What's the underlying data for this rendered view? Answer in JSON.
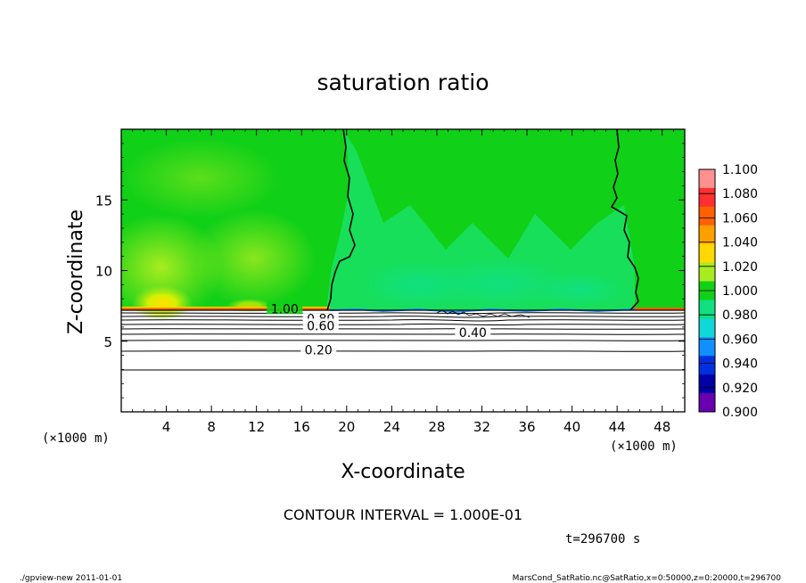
{
  "chart_data": {
    "type": "heatmap",
    "title": "saturation ratio",
    "xlabel": "X-coordinate",
    "ylabel": "Z-coordinate",
    "x_unit_label": "(×1000 m)",
    "z_unit_label": "(×1000 m)",
    "x_ticks": [
      4,
      8,
      12,
      16,
      20,
      24,
      28,
      32,
      36,
      40,
      44,
      48
    ],
    "z_ticks": [
      5,
      10,
      15
    ],
    "xlim": [
      0,
      50
    ],
    "zlim": [
      0,
      20
    ],
    "grid": false,
    "legend_placement": "right",
    "colorbar": {
      "levels": [
        "1.100",
        "1.080",
        "1.060",
        "1.040",
        "1.020",
        "1.000",
        "0.980",
        "0.960",
        "0.940",
        "0.920",
        "0.900"
      ],
      "colors": [
        "#ff9090",
        "#ff3030",
        "#ff6000",
        "#ffa000",
        "#ffd800",
        "#a8ec20",
        "#10d018",
        "#10e080",
        "#10d8d8",
        "#1090ff",
        "#0030e0",
        "#0000a8",
        "#6800b0"
      ]
    },
    "contour_labels": [
      {
        "text": "1.00",
        "x": 14.5,
        "z": 7.3
      },
      {
        "text": "0.80",
        "x": 17.7,
        "z": 6.6
      },
      {
        "text": "0.60",
        "x": 17.7,
        "z": 6.1
      },
      {
        "text": "0.40",
        "x": 31.2,
        "z": 5.6
      },
      {
        "text": "0.20",
        "x": 17.5,
        "z": 4.4
      }
    ],
    "contour_interval_text": "CONTOUR INTERVAL = 1.000E-01",
    "time_text": "t=296700 s"
  },
  "footer": {
    "left": "./gpview-new   2011-01-01",
    "right": "MarsCond_SatRatio.nc@SatRatio,x=0:50000,z=0:20000,t=296700"
  }
}
